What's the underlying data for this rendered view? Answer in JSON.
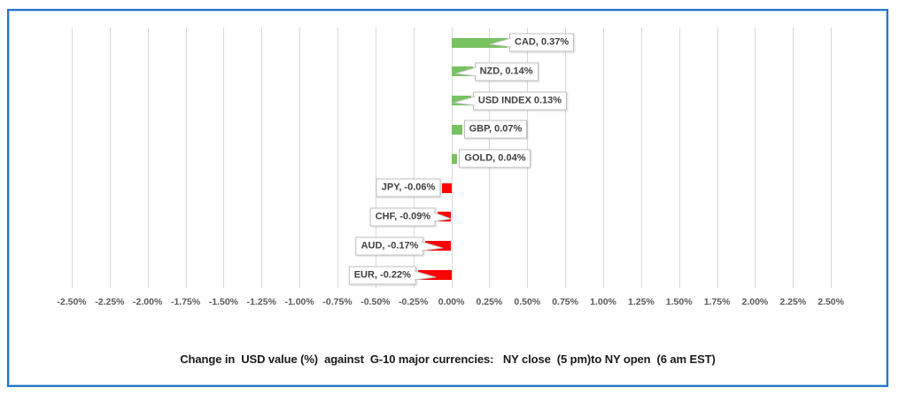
{
  "chart_data": {
    "type": "bar",
    "orientation": "horizontal",
    "title": "Change in  USD value (%)  against  G-10 major currencies:   NY close  (5 pm)to NY open  (6 am EST)",
    "categories": [
      "CAD",
      "NZD",
      "USD INDEX",
      "GBP",
      "GOLD",
      "JPY",
      "CHF",
      "AUD",
      "EUR"
    ],
    "values": [
      0.37,
      0.14,
      0.13,
      0.07,
      0.04,
      -0.06,
      -0.09,
      -0.17,
      -0.22
    ],
    "data_labels": [
      "CAD, 0.37%",
      "NZD, 0.14%",
      "USD INDEX 0.13%",
      "GBP, 0.07%",
      "GOLD, 0.04%",
      "JPY, -0.06%",
      "CHF, -0.09%",
      "AUD, -0.17%",
      "EUR, -0.22%"
    ],
    "x_ticks": [
      "-2.50%",
      "-2.25%",
      "-2.00%",
      "-1.75%",
      "-1.50%",
      "-1.25%",
      "-1.00%",
      "-0.75%",
      "-0.50%",
      "-0.25%",
      "0.00%",
      "0.25%",
      "0.50%",
      "0.75%",
      "1.00%",
      "1.25%",
      "1.50%",
      "1.75%",
      "2.00%",
      "2.25%",
      "2.50%"
    ],
    "xlim": [
      -2.5,
      2.5
    ],
    "grid": "vertical-gridlines-on",
    "legend": "none",
    "colors": {
      "positive_bar": "#79C261",
      "negative_bar": "#FF0000",
      "gridline": "#D9D9D9",
      "frame_border": "#2577C9",
      "label_box_border": "#BFBFBF",
      "label_text": "#3F3F3F",
      "tick_text": "#595959",
      "title_text": "#1A1A1A"
    }
  }
}
